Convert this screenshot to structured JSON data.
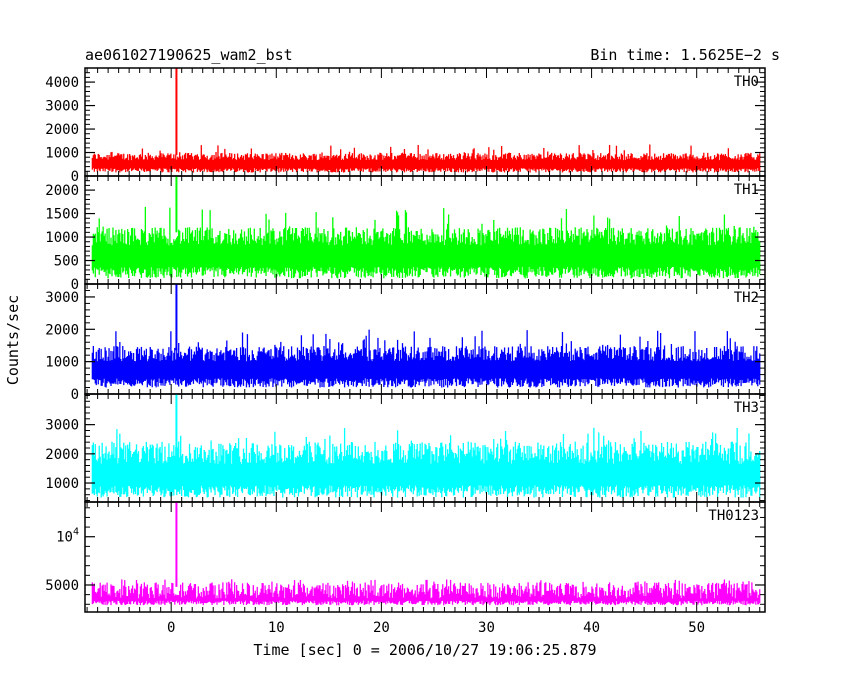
{
  "chart_data": {
    "type": "line",
    "title": "ae061027190625_wam2_bst",
    "subtitle": "Bin time: 1.5625E−2 s",
    "xlabel": "Time [sec] 0 = 2006/10/27 19:06:25.879",
    "ylabel": "Counts/sec",
    "xlim": [
      -8.2,
      56.5
    ],
    "x_ticks": [
      0,
      10,
      20,
      30,
      40,
      50
    ],
    "x_data_range": [
      -7.5,
      56.0
    ],
    "burst_time": 0.5,
    "panels": [
      {
        "name": "TH0",
        "color": "#ff0000",
        "ylim": [
          0,
          4600
        ],
        "y_ticks": [
          0,
          1000,
          2000,
          3000,
          4000
        ],
        "y_tick_labels": [
          "0",
          "1000",
          "2000",
          "3000",
          "4000"
        ],
        "noise_low": 150,
        "noise_high": 900,
        "noise_spike": 1350,
        "peak": 4600
      },
      {
        "name": "TH1",
        "color": "#00ff00",
        "ylim": [
          0,
          2300
        ],
        "y_ticks": [
          0,
          500,
          1000,
          1500,
          2000
        ],
        "y_tick_labels": [
          "0",
          "500",
          "1000",
          "1500",
          "2000"
        ],
        "noise_low": 120,
        "noise_high": 1100,
        "noise_spike": 1650,
        "peak": 2300
      },
      {
        "name": "TH2",
        "color": "#0000ff",
        "ylim": [
          0,
          3400
        ],
        "y_ticks": [
          0,
          1000,
          2000,
          3000
        ],
        "y_tick_labels": [
          "0",
          "1000",
          "2000",
          "3000"
        ],
        "noise_low": 200,
        "noise_high": 1350,
        "noise_spike": 2000,
        "peak": 3400
      },
      {
        "name": "TH3",
        "color": "#00ffff",
        "ylim": [
          350,
          4050
        ],
        "y_ticks": [
          1000,
          2000,
          3000
        ],
        "y_tick_labels": [
          "1000",
          "2000",
          "3000"
        ],
        "noise_low": 500,
        "noise_high": 2200,
        "noise_spike": 2900,
        "peak": 4050
      },
      {
        "name": "TH0123",
        "color": "#ff00ff",
        "ylim": [
          2200,
          13600
        ],
        "y_ticks": [
          5000,
          10000
        ],
        "y_tick_labels": [
          "5000",
          "10^4"
        ],
        "y_minor_ticks": [
          3000,
          4000,
          6000,
          7000,
          8000,
          9000,
          11000,
          12000,
          13000
        ],
        "noise_low": 2900,
        "noise_high": 4800,
        "noise_spike": 5600,
        "peak": 13600
      }
    ],
    "grid": false,
    "legend": "none"
  }
}
